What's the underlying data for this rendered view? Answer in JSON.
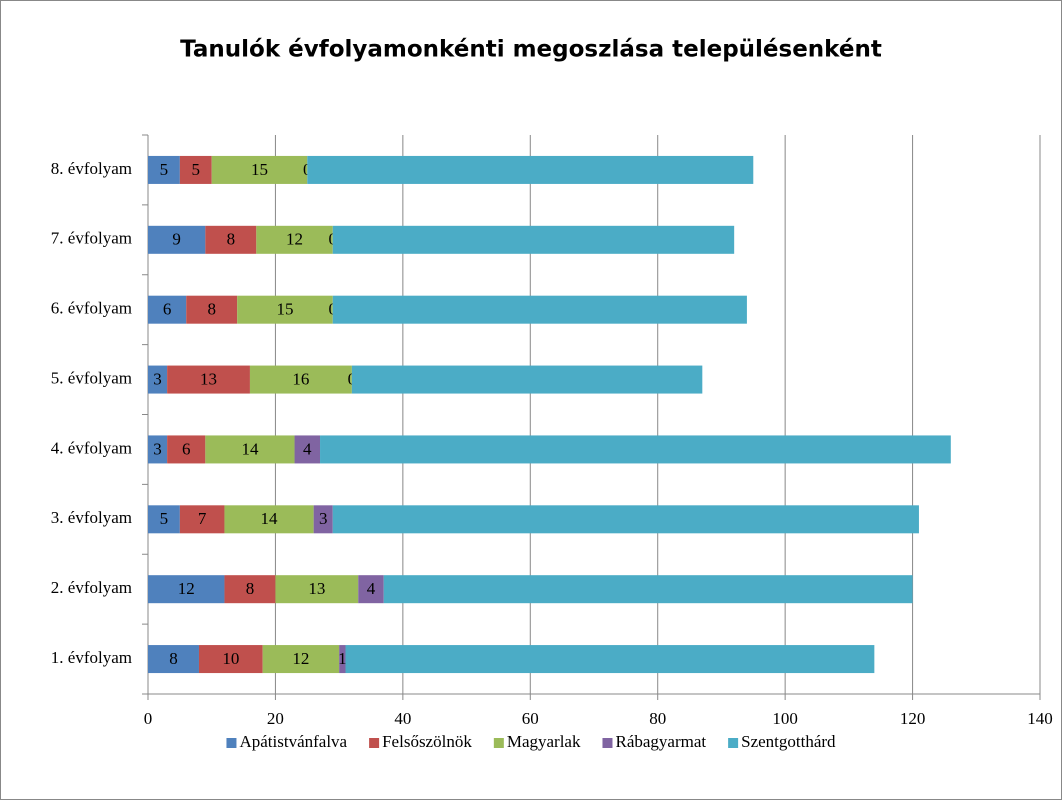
{
  "chart_data": {
    "type": "stacked_barh",
    "title": "Tanulók évfolyamonkénti megoszlása településenként",
    "categories": [
      "1. évfolyam",
      "2. évfolyam",
      "3. évfolyam",
      "4. évfolyam",
      "5. évfolyam",
      "6. évfolyam",
      "7. évfolyam",
      "8. évfolyam"
    ],
    "series": [
      {
        "name": "Apátistvánfalva",
        "color": "#4f81bd",
        "data_labels": true,
        "values": [
          8,
          12,
          5,
          3,
          3,
          6,
          9,
          5
        ]
      },
      {
        "name": "Felsőszölnök",
        "color": "#c0504d",
        "data_labels": true,
        "values": [
          10,
          8,
          7,
          6,
          13,
          8,
          8,
          5
        ]
      },
      {
        "name": "Magyarlak",
        "color": "#9bbb59",
        "data_labels": true,
        "values": [
          12,
          13,
          14,
          14,
          16,
          15,
          12,
          15
        ]
      },
      {
        "name": "Rábagyarmat",
        "color": "#8064a2",
        "data_labels": true,
        "values": [
          1,
          4,
          3,
          4,
          0,
          0,
          0,
          0
        ]
      },
      {
        "name": "Szentgotthárd",
        "color": "#4bacc6",
        "data_labels": false,
        "values": [
          83,
          83,
          92,
          99,
          55,
          65,
          63,
          70
        ]
      }
    ],
    "xlim": [
      0,
      140
    ],
    "xticks": [
      0,
      20,
      40,
      60,
      80,
      100,
      120,
      140
    ],
    "grid": true,
    "legend": "bottom"
  }
}
